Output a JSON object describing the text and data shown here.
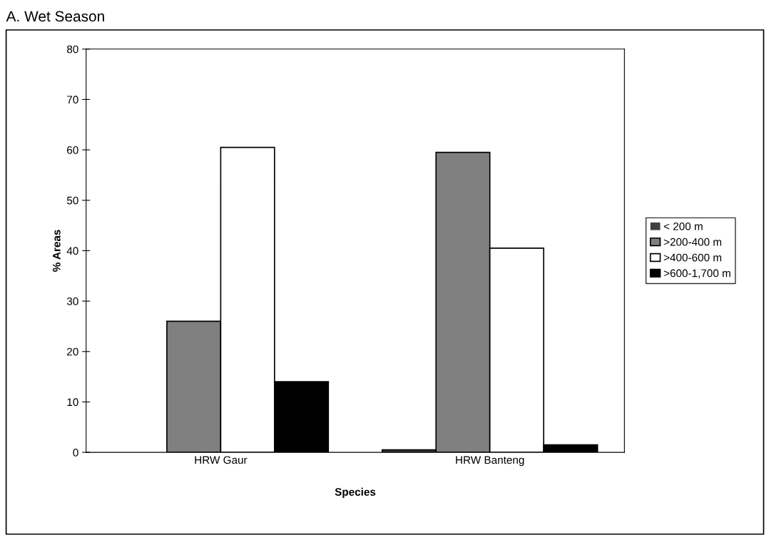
{
  "chart_data": {
    "type": "bar",
    "title": "A. Wet Season",
    "xlabel": "Species",
    "ylabel": "% Areas",
    "categories": [
      "HRW Gaur",
      "HRW Banteng"
    ],
    "series": [
      {
        "name": "< 200 m",
        "color": "#404040",
        "values": [
          0,
          0.5
        ]
      },
      {
        "name": ">200-400 m",
        "color": "#808080",
        "values": [
          26,
          59.5
        ]
      },
      {
        "name": ">400-600 m",
        "color": "#ffffff",
        "values": [
          60.5,
          40.5
        ]
      },
      {
        "name": ">600-1,700 m",
        "color": "#000000",
        "values": [
          14,
          1.5
        ]
      }
    ],
    "ylim": [
      0,
      80
    ],
    "yticks": [
      0,
      10,
      20,
      30,
      40,
      50,
      60,
      70,
      80
    ],
    "grid": false,
    "legend": "right"
  }
}
